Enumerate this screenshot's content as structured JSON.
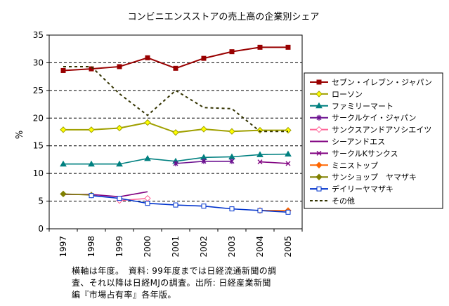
{
  "chart_data": {
    "type": "line",
    "title": "コンビニエンスストアの売上高の企業別シェア",
    "ylabel": "%",
    "xlabel": "",
    "ylim": [
      0,
      35
    ],
    "yticks": [
      0,
      5,
      10,
      15,
      20,
      25,
      30,
      35
    ],
    "categories": [
      "1997",
      "1998",
      "1999",
      "2000",
      "2001",
      "2002",
      "2003",
      "2004",
      "2005"
    ],
    "grid": "horizontal dashed",
    "legend_position": "right",
    "series": [
      {
        "name": "セブン・イレブン・ジャパン",
        "color": "#990000",
        "marker": "square-filled",
        "values": [
          28.6,
          28.9,
          29.3,
          30.9,
          29.0,
          30.8,
          32.0,
          32.8,
          32.8
        ]
      },
      {
        "name": "ローソン",
        "color": "#a0a000",
        "marker": "diamond-yellow",
        "values": [
          17.9,
          17.9,
          18.2,
          19.2,
          17.4,
          18.0,
          17.6,
          17.8,
          17.8
        ]
      },
      {
        "name": "ファミリーマート",
        "color": "#008080",
        "marker": "triangle",
        "values": [
          11.7,
          11.7,
          11.7,
          12.7,
          12.2,
          12.9,
          13.0,
          13.4,
          13.5
        ]
      },
      {
        "name": "サークルケイ・ジャパン",
        "color": "#6a0f8f",
        "marker": "star",
        "values": [
          null,
          null,
          null,
          null,
          11.8,
          12.2,
          12.2,
          null,
          null
        ]
      },
      {
        "name": "サンクスアンドアソシエイツ",
        "color": "#ff6699",
        "marker": "diamond-open",
        "values": [
          null,
          null,
          5.1,
          5.5,
          null,
          null,
          null,
          null,
          null
        ]
      },
      {
        "name": "シーアンドエス",
        "color": "#800080",
        "marker": "none",
        "values": [
          6.2,
          6.2,
          5.8,
          6.7,
          null,
          null,
          null,
          null,
          null
        ]
      },
      {
        "name": "サークルKサンクス",
        "color": "#800080",
        "marker": "x",
        "values": [
          null,
          null,
          null,
          null,
          null,
          null,
          null,
          12.1,
          11.8
        ]
      },
      {
        "name": "ミニストップ",
        "color": "#ff6600",
        "marker": "diamond-filled",
        "values": [
          null,
          null,
          null,
          null,
          null,
          null,
          null,
          3.3,
          3.3
        ]
      },
      {
        "name": "サンショップ　ヤマザキ",
        "color": "#808000",
        "marker": "diamond-filled",
        "values": [
          6.3,
          6.1,
          null,
          null,
          null,
          null,
          null,
          null,
          null
        ]
      },
      {
        "name": "デイリーヤマザキ",
        "color": "#0033cc",
        "marker": "square-open",
        "values": [
          null,
          6.0,
          5.5,
          4.6,
          4.3,
          4.1,
          3.6,
          3.3,
          3.0
        ]
      },
      {
        "name": "その他",
        "color": "#333300",
        "marker": "none",
        "dashed": true,
        "values": [
          29.3,
          29.3,
          24.4,
          20.5,
          25.0,
          21.9,
          21.7,
          17.6,
          17.6
        ]
      }
    ]
  },
  "note": {
    "lines": [
      "横軸は年度。　資料: 99年度までは日経流通新聞の調",
      "査、それ以降は日経MJの調査。出所: 日経産業新聞",
      "編『市場占有率』各年版。"
    ]
  }
}
